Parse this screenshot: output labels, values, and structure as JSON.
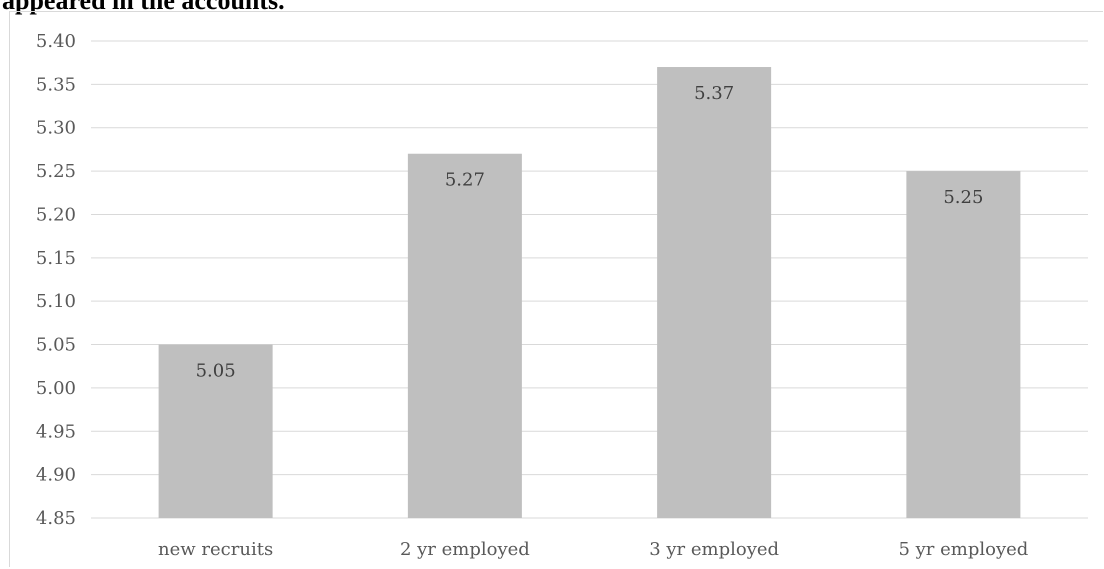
{
  "caption": "appeared in the accounts.",
  "chart_data": {
    "type": "bar",
    "title": "",
    "xlabel": "",
    "ylabel": "",
    "categories": [
      "new recruits",
      "2 yr employed",
      "3 yr employed",
      "5 yr employed"
    ],
    "values": [
      5.05,
      5.27,
      5.37,
      5.25
    ],
    "data_labels": [
      "5.05",
      "5.27",
      "5.37",
      "5.25"
    ],
    "ylim": [
      4.85,
      5.4
    ],
    "y_ticks": [
      "4.85",
      "4.90",
      "4.95",
      "5.00",
      "5.05",
      "5.10",
      "5.15",
      "5.20",
      "5.25",
      "5.30",
      "5.35",
      "5.40"
    ],
    "grid": true,
    "legend": "none",
    "bar_color": "#bfbfbf",
    "grid_color": "#d9d9d9"
  }
}
